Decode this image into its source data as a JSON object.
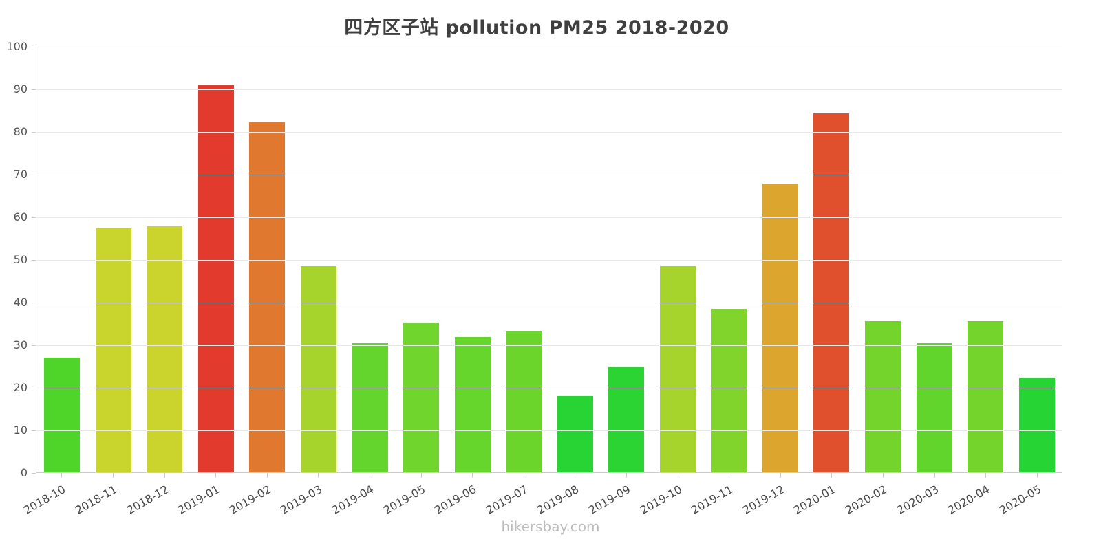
{
  "page": {
    "footer": "hikersbay.com"
  },
  "colors": {
    "grid": "#e8e8e8",
    "axis": "#cccccc",
    "tick_label": "#4a4a4a",
    "title": "#3f3f3f",
    "footer": "#bdbdbd"
  },
  "chart_data": {
    "type": "bar",
    "title": "四方区子站 pollution PM25 2018-2020",
    "xlabel": "",
    "ylabel": "",
    "ylim": [
      0,
      100
    ],
    "ytick_step": 10,
    "grid": true,
    "legend": false,
    "categories": [
      "2018-10",
      "2018-11",
      "2018-12",
      "2019-01",
      "2019-02",
      "2019-03",
      "2019-04",
      "2019-05",
      "2019-06",
      "2019-07",
      "2019-08",
      "2019-09",
      "2019-10",
      "2019-11",
      "2019-12",
      "2020-01",
      "2020-02",
      "2020-03",
      "2020-04",
      "2020-05"
    ],
    "values": [
      27,
      57.4,
      57.8,
      91,
      82.4,
      48.5,
      30.3,
      35,
      31.8,
      33.2,
      17.9,
      24.8,
      48.5,
      38.4,
      67.8,
      84.4,
      35.6,
      30.4,
      35.5,
      22.2
    ],
    "bar_colors": [
      "#4fd42a",
      "#c9d42c",
      "#cbd42c",
      "#e23a2d",
      "#e1782f",
      "#a6d42c",
      "#63d52c",
      "#70d52c",
      "#66d52c",
      "#6bd52c",
      "#27d433",
      "#2cd433",
      "#a6d42c",
      "#80d42c",
      "#dca52e",
      "#e0502d",
      "#75d42c",
      "#61d52c",
      "#74d42c",
      "#26d433"
    ]
  }
}
